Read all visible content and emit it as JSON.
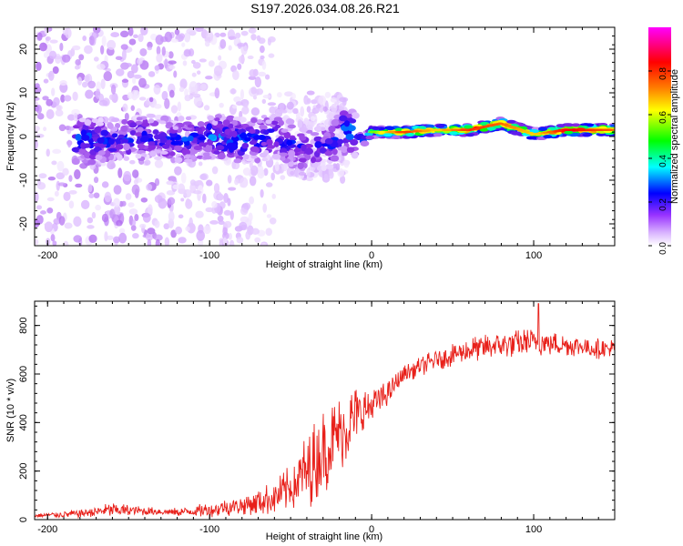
{
  "figure": {
    "title": "S197.2026.034.08.26.R21",
    "colors": {
      "snr_line": "#e8201a",
      "axis": "#000000",
      "background": "#ffffff"
    }
  },
  "chart_data": [
    {
      "type": "heatmap",
      "name": "spectrogram",
      "xlabel": "Height of straight line (km)",
      "ylabel": "Frequency (Hz)",
      "xlim": [
        -208,
        150
      ],
      "ylim": [
        -25,
        25
      ],
      "xticks": [
        -200,
        -100,
        0,
        100
      ],
      "yticks": [
        -20,
        -10,
        0,
        10,
        20
      ],
      "colorbar": {
        "label": "Normalized spectral amplitude",
        "range": [
          0,
          1
        ],
        "ticks": [
          0.0,
          0.2,
          0.4,
          0.6,
          0.8
        ],
        "colormap": [
          "#ffffff",
          "#d9b3ff",
          "#8a2be2",
          "#0000ff",
          "#00ffff",
          "#00ff00",
          "#ffff00",
          "#ff8000",
          "#ff0000",
          "#ff00ff"
        ]
      },
      "ridge": [
        {
          "x": -175,
          "f": -1,
          "amp": 0.35
        },
        {
          "x": -160,
          "f": -1,
          "amp": 0.3
        },
        {
          "x": -140,
          "f": 0,
          "amp": 0.3
        },
        {
          "x": -120,
          "f": -1,
          "amp": 0.3
        },
        {
          "x": -100,
          "f": 0,
          "amp": 0.35
        },
        {
          "x": -80,
          "f": -1,
          "amp": 0.35
        },
        {
          "x": -60,
          "f": 0,
          "amp": 0.3
        },
        {
          "x": -40,
          "f": -3,
          "amp": 0.3
        },
        {
          "x": -25,
          "f": -2,
          "amp": 0.3
        },
        {
          "x": -15,
          "f": 2,
          "amp": 0.4
        },
        {
          "x": -5,
          "f": -1,
          "amp": 0.4
        },
        {
          "x": 0,
          "f": 1,
          "amp": 0.6
        },
        {
          "x": 20,
          "f": 1,
          "amp": 0.85
        },
        {
          "x": 40,
          "f": 1.5,
          "amp": 0.7
        },
        {
          "x": 60,
          "f": 1.5,
          "amp": 0.85
        },
        {
          "x": 80,
          "f": 3,
          "amp": 0.8
        },
        {
          "x": 100,
          "f": 0.5,
          "amp": 0.7
        },
        {
          "x": 120,
          "f": 1.5,
          "amp": 0.9
        },
        {
          "x": 150,
          "f": 1.5,
          "amp": 0.8
        }
      ]
    },
    {
      "type": "line",
      "name": "snr",
      "xlabel": "Height of straight line (km)",
      "ylabel": "SNR (10 * v/v)",
      "xlim": [
        -208,
        150
      ],
      "ylim": [
        0,
        900
      ],
      "xticks": [
        -200,
        -100,
        0,
        100
      ],
      "yticks": [
        0,
        200,
        400,
        600,
        800
      ],
      "envelope": {
        "x": [
          -208,
          -180,
          -160,
          -140,
          -120,
          -100,
          -80,
          -60,
          -50,
          -40,
          -30,
          -20,
          -10,
          0,
          10,
          20,
          40,
          60,
          80,
          100,
          120,
          150
        ],
        "mean": [
          15,
          25,
          40,
          35,
          30,
          40,
          60,
          90,
          130,
          200,
          280,
          350,
          420,
          470,
          520,
          600,
          660,
          700,
          720,
          730,
          720,
          700
        ],
        "spread": [
          10,
          20,
          35,
          20,
          20,
          35,
          45,
          80,
          110,
          180,
          200,
          180,
          150,
          90,
          60,
          40,
          50,
          60,
          60,
          70,
          50,
          50
        ]
      },
      "peak": {
        "x": 103,
        "y": 890
      }
    }
  ]
}
